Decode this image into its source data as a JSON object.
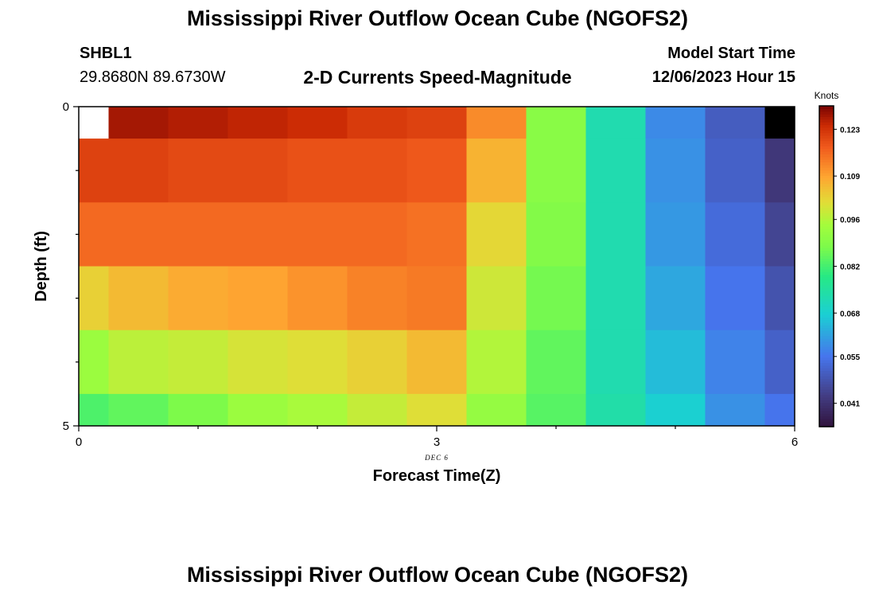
{
  "header": {
    "title": "Mississippi River Outflow Ocean Cube (NGOFS2)",
    "station_id": "SHBL1",
    "station_coords": "29.8680N  89.6730W",
    "subtitle": "2-D Currents Speed-Magnitude",
    "model_start_label": "Model Start Time",
    "model_start_value": "12/06/2023 Hour 15"
  },
  "footer": {
    "title": "Mississippi River Outflow Ocean Cube (NGOFS2)"
  },
  "chart_data": {
    "type": "heatmap",
    "title": "2-D Currents Speed-Magnitude",
    "xlabel": "Forecast Time(Z)",
    "ylabel": "Depth (ft)",
    "x_ticks": [
      "0",
      "3",
      "6"
    ],
    "y_ticks": [
      "0",
      "5"
    ],
    "x_note": "DEC 6",
    "xlim": [
      0,
      6
    ],
    "ylim": [
      0,
      5
    ],
    "colorbar": {
      "title": "Knots",
      "range": [
        0.034,
        0.13
      ],
      "ticks": [
        "0.123",
        "0.109",
        "0.096",
        "0.082",
        "0.068",
        "0.055",
        "0.041"
      ],
      "tick_values": [
        0.123,
        0.109,
        0.096,
        0.082,
        0.068,
        0.055,
        0.041
      ]
    },
    "x_edges": [
      0,
      0.25,
      0.75,
      1.25,
      1.75,
      2.25,
      2.75,
      3.25,
      3.75,
      4.25,
      4.75,
      5.25,
      5.75,
      6
    ],
    "y_edges": [
      0,
      0.5,
      1.5,
      2.5,
      3.5,
      4.5,
      5
    ],
    "values": [
      [
        null,
        0.127,
        0.126,
        0.125,
        0.124,
        0.122,
        0.121,
        0.112,
        0.09,
        0.073,
        0.058,
        0.05,
        0.03
      ],
      [
        0.121,
        0.121,
        0.12,
        0.12,
        0.119,
        0.119,
        0.118,
        0.107,
        0.09,
        0.073,
        0.059,
        0.051,
        0.042
      ],
      [
        0.116,
        0.116,
        0.116,
        0.116,
        0.116,
        0.116,
        0.115,
        0.102,
        0.089,
        0.073,
        0.06,
        0.053,
        0.045
      ],
      [
        0.103,
        0.106,
        0.108,
        0.109,
        0.111,
        0.113,
        0.114,
        0.099,
        0.087,
        0.073,
        0.062,
        0.055,
        0.048
      ],
      [
        0.093,
        0.097,
        0.098,
        0.1,
        0.101,
        0.103,
        0.106,
        0.096,
        0.085,
        0.073,
        0.065,
        0.057,
        0.051
      ],
      [
        0.083,
        0.085,
        0.088,
        0.093,
        0.095,
        0.098,
        0.101,
        0.092,
        0.084,
        0.074,
        0.068,
        0.059,
        0.055
      ]
    ]
  }
}
